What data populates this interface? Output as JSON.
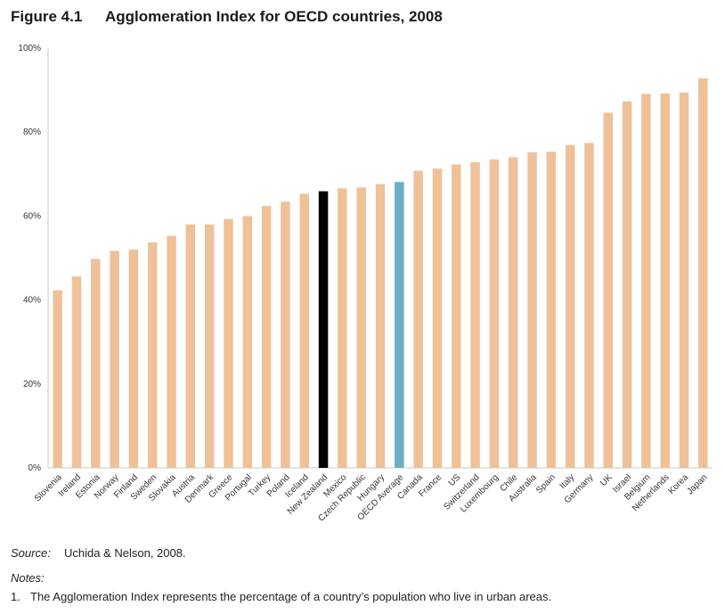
{
  "figure": {
    "number": "Figure 4.1",
    "title": "Agglomeration Index for OECD countries, 2008"
  },
  "chart_data": {
    "type": "bar",
    "title": "Agglomeration Index for OECD countries, 2008",
    "xlabel": "",
    "ylabel": "",
    "ylim": [
      0,
      100
    ],
    "yticks": [
      "0%",
      "20%",
      "40%",
      "60%",
      "80%",
      "100%"
    ],
    "grid": false,
    "categories": [
      "Slovenia",
      "Ireland",
      "Estonia",
      "Norway",
      "Finland",
      "Sweden",
      "Slovakia",
      "Austria",
      "Denmark",
      "Greece",
      "Portugal",
      "Turkey",
      "Poland",
      "Iceland",
      "New Zealand",
      "Mexico",
      "Czech Republic",
      "Hungary",
      "OECD Average",
      "Canada",
      "France",
      "US",
      "Switzerland",
      "Luxembourg",
      "Chile",
      "Australia",
      "Spain",
      "Italy",
      "Germany",
      "UK",
      "Israel",
      "Belgium",
      "Netherlands",
      "Korea",
      "Japan"
    ],
    "values": [
      42.3,
      45.6,
      49.8,
      51.7,
      52.0,
      53.7,
      55.3,
      58.0,
      58.0,
      59.3,
      60.0,
      62.4,
      63.4,
      65.3,
      65.9,
      66.6,
      66.8,
      67.6,
      68.1,
      70.8,
      71.3,
      72.3,
      72.8,
      73.5,
      74.0,
      75.2,
      75.3,
      76.9,
      77.4,
      84.6,
      87.3,
      89.1,
      89.2,
      89.4,
      92.8
    ],
    "colors": {
      "default": "#EEC199",
      "New Zealand": "#000000",
      "OECD Average": "#6CAEC6"
    }
  },
  "footer": {
    "source_label": "Source:",
    "source_text": "Uchida & Nelson, 2008.",
    "notes_heading": "Notes:",
    "note_index": "1.",
    "note_text": "The Agglomeration Index represents the percentage of a country’s population who live in urban areas."
  }
}
